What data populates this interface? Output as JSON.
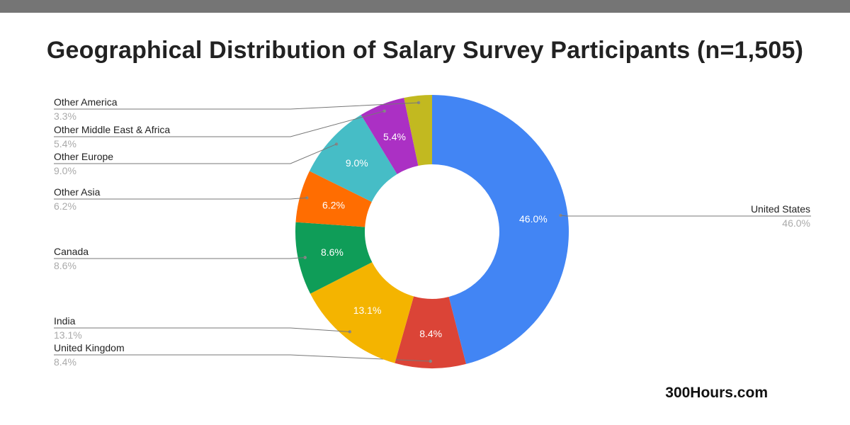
{
  "chart_data": {
    "type": "pie",
    "donut": true,
    "title": "Geographical Distribution of Salary Survey Participants (n=1,505)",
    "slices": [
      {
        "label": "United States",
        "value": 46.0,
        "display": "46.0%",
        "color": "#4285F4"
      },
      {
        "label": "United Kingdom",
        "value": 8.4,
        "display": "8.4%",
        "color": "#DB4437"
      },
      {
        "label": "India",
        "value": 13.1,
        "display": "13.1%",
        "color": "#F4B400"
      },
      {
        "label": "Canada",
        "value": 8.6,
        "display": "8.6%",
        "color": "#0F9D58"
      },
      {
        "label": "Other Asia",
        "value": 6.2,
        "display": "6.2%",
        "color": "#FF6D01"
      },
      {
        "label": "Other Europe",
        "value": 9.0,
        "display": "9.0%",
        "color": "#46BDC6"
      },
      {
        "label": "Other Middle East & Africa",
        "value": 5.4,
        "display": "5.4%",
        "color": "#AB30C4"
      },
      {
        "label": "Other America",
        "value": 3.3,
        "display": "3.3%",
        "color": "#C2B920"
      }
    ],
    "legend": "leader-line labels"
  },
  "watermark": "300Hours.com"
}
